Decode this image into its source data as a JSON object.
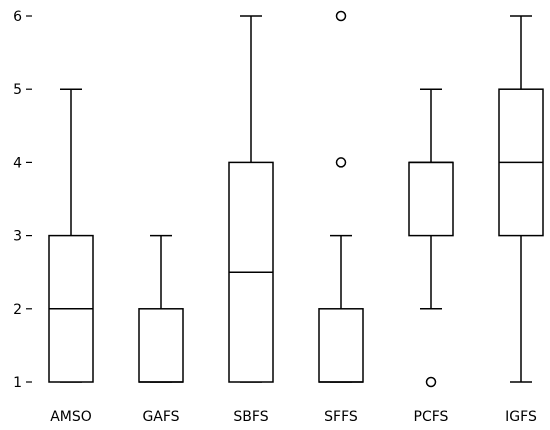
{
  "chart_data": {
    "type": "boxplot",
    "title": "",
    "xlabel": "",
    "ylabel": "",
    "ylim": [
      1,
      6
    ],
    "yticks": [
      1,
      2,
      3,
      4,
      5,
      6
    ],
    "grid": false,
    "categories": [
      "AMSO",
      "GAFS",
      "SBFS",
      "SFFS",
      "PCFS",
      "IGFS"
    ],
    "boxes": [
      {
        "label": "AMSO",
        "whisker_low": 1,
        "q1": 1,
        "median": 2,
        "q3": 3,
        "whisker_high": 5,
        "outliers": []
      },
      {
        "label": "GAFS",
        "whisker_low": 1,
        "q1": 1,
        "median": 1,
        "q3": 2,
        "whisker_high": 3,
        "outliers": []
      },
      {
        "label": "SBFS",
        "whisker_low": 1,
        "q1": 1,
        "median": 2.5,
        "q3": 4,
        "whisker_high": 6,
        "outliers": []
      },
      {
        "label": "SFFS",
        "whisker_low": 1,
        "q1": 1,
        "median": 1,
        "q3": 2,
        "whisker_high": 3,
        "outliers": [
          4,
          6
        ]
      },
      {
        "label": "PCFS",
        "whisker_low": 2,
        "q1": 3,
        "median": 4,
        "q3": 4,
        "whisker_high": 5,
        "outliers": [
          1
        ]
      },
      {
        "label": "IGFS",
        "whisker_low": 1,
        "q1": 3,
        "median": 4,
        "q3": 5,
        "whisker_high": 6,
        "outliers": []
      }
    ],
    "colors": {
      "stroke": "#000000",
      "fill": "#ffffff"
    }
  }
}
